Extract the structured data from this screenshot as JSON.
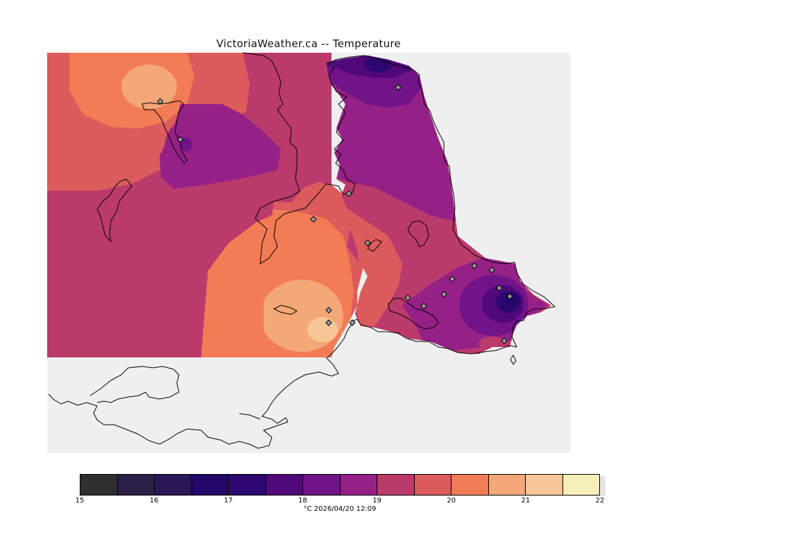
{
  "map": {
    "title": "VictoriaWeather.ca -- Temperature",
    "variable": "Temperature",
    "units": "°C",
    "background_color": "#efefef",
    "land_outline_color": "#000000",
    "station_marker": "diamond"
  },
  "colorbar": {
    "levels": [
      15,
      15.5,
      16,
      16.5,
      17,
      17.5,
      18,
      18.5,
      19,
      19.5,
      20,
      20.5,
      21,
      21.5,
      22
    ],
    "colors": [
      "#2f2f2f",
      "#2c2048",
      "#2b1658",
      "#23086a",
      "#2d0871",
      "#50087a",
      "#701488",
      "#952186",
      "#bb3a6c",
      "#dc5b5c",
      "#f27c56",
      "#f4a778",
      "#f6c697",
      "#f6efb9"
    ],
    "tick_labels": [
      "15",
      "16",
      "17",
      "18",
      "19",
      "20",
      "21",
      "22"
    ],
    "caption": "°C  2026/04/20 12:09"
  }
}
